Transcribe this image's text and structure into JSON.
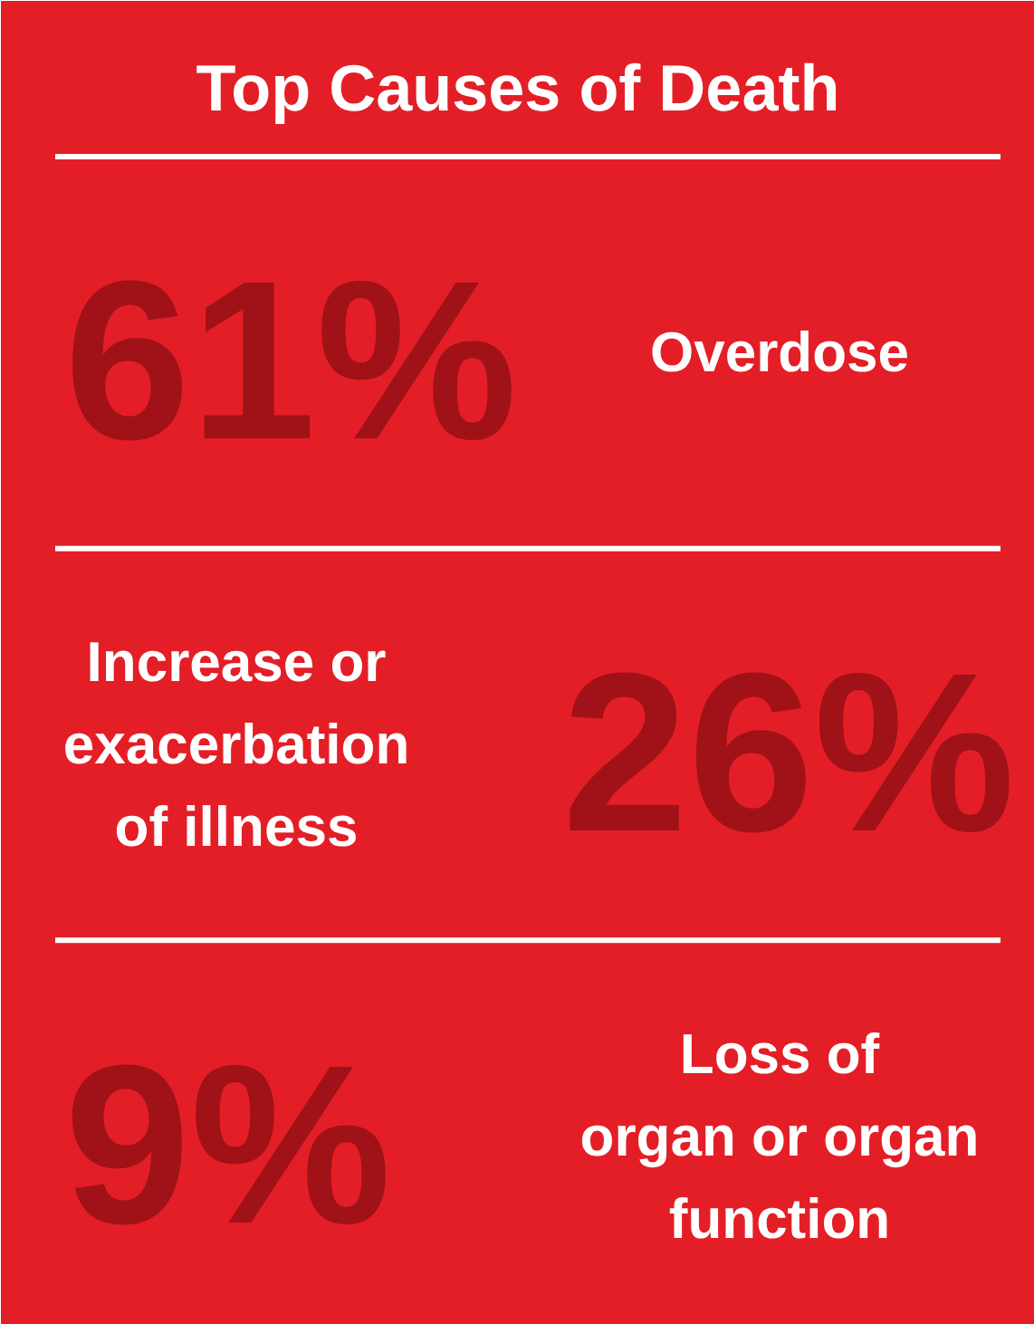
{
  "chart_data": {
    "type": "other",
    "title": "Top Causes of Death",
    "categories": [
      "Overdose",
      "Increase or\nexacerbation\nof illness",
      "Loss of\norgan or organ\nfunction"
    ],
    "values": [
      61,
      26,
      9
    ],
    "value_labels": [
      "61%",
      "26%",
      "9%"
    ],
    "color": "#a01218"
  }
}
